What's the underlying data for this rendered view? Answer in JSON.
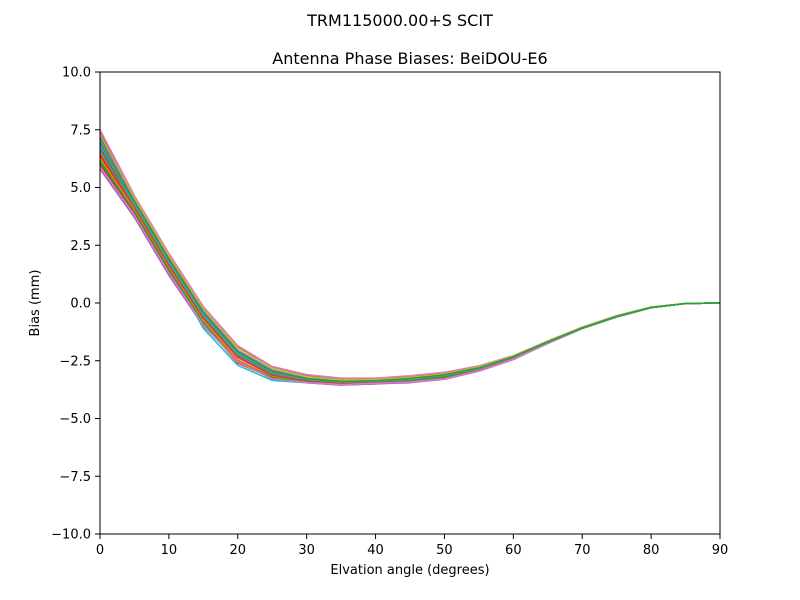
{
  "chart_data": {
    "type": "line",
    "suptitle": "TRM115000.00+S  SCIT",
    "title": "Antenna Phase Biases: BeiDOU-E6",
    "xlabel": "Elvation angle (degrees)",
    "ylabel": "Bias (mm)",
    "xlim": [
      0,
      90
    ],
    "ylim": [
      -10,
      10
    ],
    "xticks": [
      0,
      10,
      20,
      30,
      40,
      50,
      60,
      70,
      80,
      90
    ],
    "yticks": [
      -10.0,
      -7.5,
      -5.0,
      -2.5,
      0.0,
      2.5,
      5.0,
      7.5,
      10.0
    ],
    "ytick_labels": [
      "−10.0",
      "−7.5",
      "−5.0",
      "−2.5",
      "0.0",
      "2.5",
      "5.0",
      "7.5",
      "10.0"
    ],
    "xtick_labels": [
      "0",
      "10",
      "20",
      "30",
      "40",
      "50",
      "60",
      "70",
      "80",
      "90"
    ],
    "grid": false,
    "x": [
      0,
      5,
      10,
      15,
      20,
      25,
      30,
      35,
      40,
      45,
      50,
      55,
      60,
      65,
      70,
      75,
      80,
      85,
      90
    ],
    "series": [
      {
        "color": "#1f77b4",
        "values": [
          7.2,
          4.4,
          1.9,
          -0.4,
          -2.1,
          -2.95,
          -3.3,
          -3.4,
          -3.35,
          -3.3,
          -3.15,
          -2.85,
          -2.35,
          -1.7,
          -1.1,
          -0.6,
          -0.2,
          -0.02,
          0.0
        ]
      },
      {
        "color": "#ff7f0e",
        "values": [
          6.5,
          4.2,
          1.7,
          -0.6,
          -2.3,
          -3.1,
          -3.35,
          -3.45,
          -3.4,
          -3.3,
          -3.15,
          -2.85,
          -2.35,
          -1.7,
          -1.1,
          -0.6,
          -0.2,
          -0.02,
          0.0
        ]
      },
      {
        "color": "#2ca02c",
        "values": [
          6.2,
          4.0,
          1.5,
          -0.8,
          -2.5,
          -3.2,
          -3.4,
          -3.5,
          -3.45,
          -3.35,
          -3.2,
          -2.9,
          -2.4,
          -1.75,
          -1.1,
          -0.6,
          -0.2,
          -0.02,
          0.0
        ]
      },
      {
        "color": "#d62728",
        "values": [
          6.0,
          3.9,
          1.4,
          -0.9,
          -2.6,
          -3.25,
          -3.45,
          -3.55,
          -3.5,
          -3.4,
          -3.25,
          -2.9,
          -2.4,
          -1.75,
          -1.1,
          -0.6,
          -0.2,
          -0.02,
          0.0
        ]
      },
      {
        "color": "#9467bd",
        "values": [
          5.8,
          3.7,
          1.2,
          -1.0,
          -2.5,
          -3.3,
          -3.45,
          -3.55,
          -3.5,
          -3.45,
          -3.3,
          -2.95,
          -2.45,
          -1.75,
          -1.1,
          -0.6,
          -0.2,
          -0.02,
          0.0
        ]
      },
      {
        "color": "#8c564b",
        "values": [
          7.4,
          4.6,
          2.1,
          -0.2,
          -1.9,
          -2.8,
          -3.15,
          -3.3,
          -3.3,
          -3.2,
          -3.05,
          -2.75,
          -2.3,
          -1.65,
          -1.05,
          -0.55,
          -0.18,
          -0.02,
          0.0
        ]
      },
      {
        "color": "#e377c2",
        "values": [
          7.5,
          4.65,
          2.15,
          -0.15,
          -1.85,
          -2.75,
          -3.1,
          -3.25,
          -3.25,
          -3.15,
          -3.0,
          -2.72,
          -2.28,
          -1.65,
          -1.05,
          -0.55,
          -0.18,
          -0.02,
          0.0
        ]
      },
      {
        "color": "#7f7f7f",
        "values": [
          6.8,
          4.3,
          1.8,
          -0.5,
          -2.2,
          -3.0,
          -3.3,
          -3.4,
          -3.38,
          -3.3,
          -3.15,
          -2.85,
          -2.35,
          -1.7,
          -1.1,
          -0.6,
          -0.2,
          -0.02,
          0.0
        ]
      },
      {
        "color": "#bcbd22",
        "values": [
          6.6,
          4.25,
          1.75,
          -0.55,
          -2.25,
          -3.05,
          -3.32,
          -3.42,
          -3.4,
          -3.3,
          -3.15,
          -2.85,
          -2.35,
          -1.7,
          -1.1,
          -0.6,
          -0.2,
          -0.02,
          0.0
        ]
      },
      {
        "color": "#17becf",
        "values": [
          7.0,
          4.1,
          1.6,
          -1.1,
          -2.7,
          -3.35,
          -3.45,
          -3.5,
          -3.45,
          -3.4,
          -3.2,
          -2.9,
          -2.4,
          -1.75,
          -1.1,
          -0.6,
          -0.2,
          -0.02,
          0.0
        ]
      },
      {
        "color": "#1f77b4",
        "values": [
          6.9,
          4.35,
          1.85,
          -0.45,
          -2.15,
          -2.98,
          -3.3,
          -3.42,
          -3.38,
          -3.28,
          -3.12,
          -2.82,
          -2.33,
          -1.68,
          -1.08,
          -0.58,
          -0.2,
          -0.02,
          0.0
        ]
      },
      {
        "color": "#ff7f0e",
        "values": [
          6.3,
          4.05,
          1.55,
          -0.75,
          -2.45,
          -3.18,
          -3.4,
          -3.48,
          -3.44,
          -3.34,
          -3.18,
          -2.88,
          -2.38,
          -1.72,
          -1.1,
          -0.6,
          -0.2,
          -0.02,
          0.0
        ]
      },
      {
        "color": "#2ca02c",
        "values": [
          6.1,
          3.95,
          1.45,
          -0.85,
          -2.55,
          -3.22,
          -3.43,
          -3.52,
          -3.47,
          -3.37,
          -3.22,
          -2.9,
          -2.4,
          -1.74,
          -1.1,
          -0.6,
          -0.2,
          -0.02,
          0.0
        ]
      },
      {
        "color": "#d62728",
        "values": [
          6.4,
          4.15,
          1.65,
          -0.65,
          -2.35,
          -3.12,
          -3.36,
          -3.46,
          -3.42,
          -3.32,
          -3.16,
          -2.86,
          -2.36,
          -1.71,
          -1.1,
          -0.6,
          -0.2,
          -0.02,
          0.0
        ]
      },
      {
        "color": "#9467bd",
        "values": [
          7.1,
          4.45,
          1.95,
          -0.35,
          -2.05,
          -2.9,
          -3.25,
          -3.38,
          -3.35,
          -3.25,
          -3.1,
          -2.8,
          -2.32,
          -1.68,
          -1.07,
          -0.57,
          -0.19,
          -0.02,
          0.0
        ]
      },
      {
        "color": "#8c564b",
        "values": [
          6.7,
          4.28,
          1.78,
          -0.52,
          -2.22,
          -3.02,
          -3.31,
          -3.41,
          -3.39,
          -3.3,
          -3.14,
          -2.84,
          -2.35,
          -1.7,
          -1.1,
          -0.6,
          -0.2,
          -0.02,
          0.0
        ]
      },
      {
        "color": "#e377c2",
        "values": [
          5.9,
          3.8,
          1.3,
          -0.95,
          -2.55,
          -3.28,
          -3.44,
          -3.53,
          -3.48,
          -3.42,
          -3.28,
          -2.93,
          -2.43,
          -1.75,
          -1.1,
          -0.6,
          -0.2,
          -0.02,
          0.0
        ]
      },
      {
        "color": "#7f7f7f",
        "values": [
          6.55,
          4.22,
          1.72,
          -0.58,
          -2.28,
          -3.07,
          -3.33,
          -3.43,
          -3.41,
          -3.31,
          -3.15,
          -2.85,
          -2.35,
          -1.7,
          -1.1,
          -0.6,
          -0.2,
          -0.02,
          0.0
        ]
      },
      {
        "color": "#bcbd22",
        "values": [
          7.3,
          4.55,
          2.05,
          -0.25,
          -1.95,
          -2.82,
          -3.18,
          -3.32,
          -3.31,
          -3.22,
          -3.07,
          -2.77,
          -2.3,
          -1.66,
          -1.06,
          -0.56,
          -0.18,
          -0.02,
          0.0
        ]
      },
      {
        "color": "#17becf",
        "values": [
          6.85,
          4.32,
          1.82,
          -0.48,
          -2.18,
          -2.99,
          -3.3,
          -3.41,
          -3.38,
          -3.29,
          -3.13,
          -2.83,
          -2.34,
          -1.69,
          -1.09,
          -0.59,
          -0.2,
          -0.02,
          0.0
        ]
      },
      {
        "color": "#2ca02c",
        "values": [
          6.95,
          4.38,
          1.88,
          -0.42,
          -2.12,
          -2.96,
          -3.28,
          -3.4,
          -3.37,
          -3.27,
          -3.11,
          -2.81,
          -2.33,
          -1.68,
          -1.08,
          -0.58,
          -0.19,
          -0.02,
          0.0
        ]
      }
    ]
  }
}
